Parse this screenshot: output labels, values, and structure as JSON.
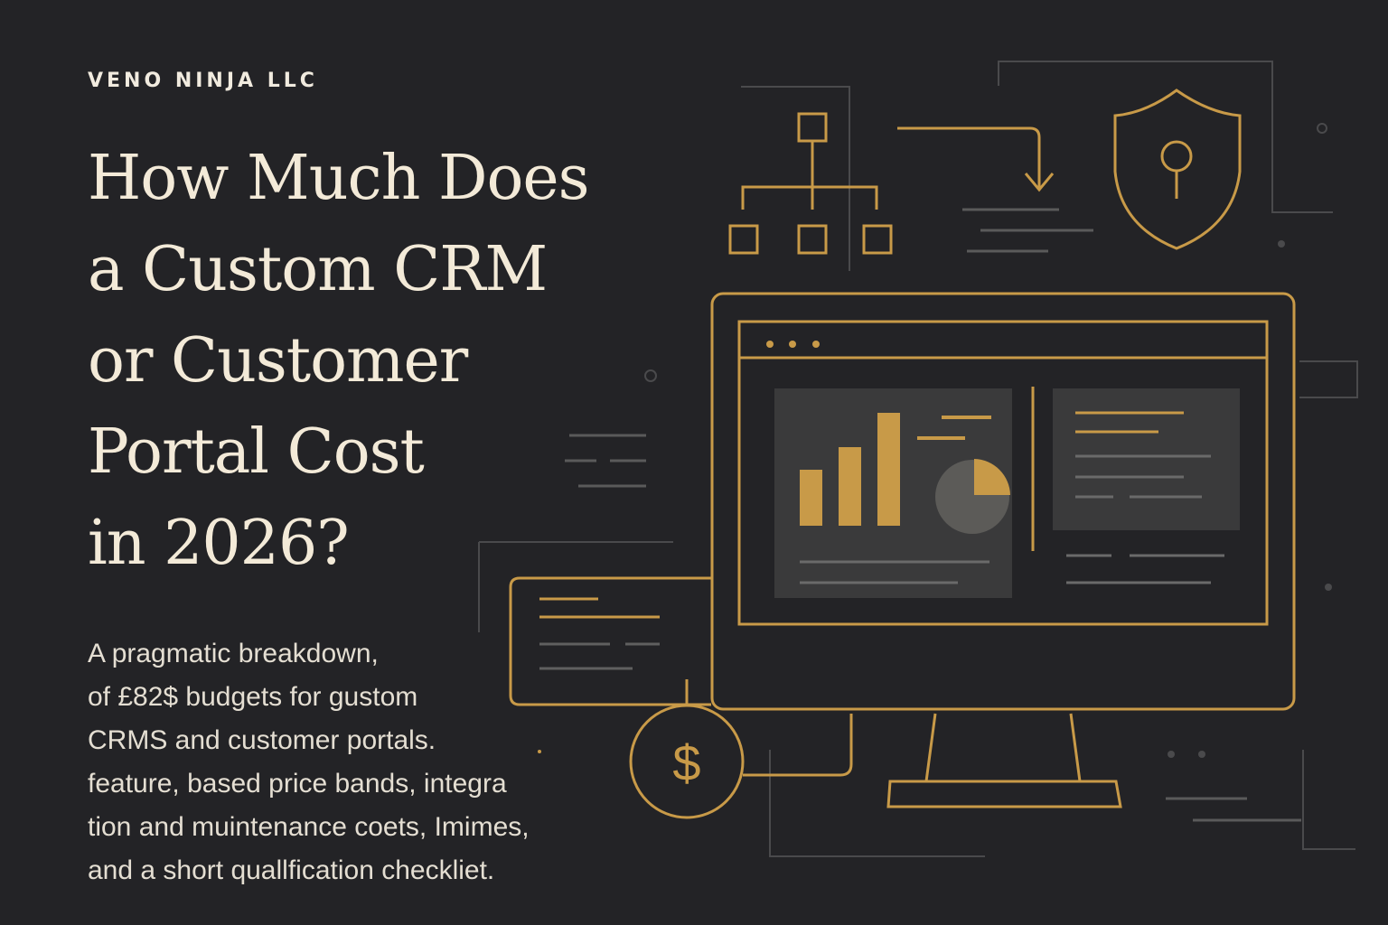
{
  "brand": "VENO NINJA LLC",
  "title": {
    "lines": [
      "How Much Does",
      "a Custom CRM",
      "or Customer",
      "Portal Cost",
      "in 2026?"
    ]
  },
  "description": {
    "lines": [
      "A pragmatic breakdown,",
      "of £82$ budgets for gustom",
      "CRMS and customer portals.",
      "feature, based price bands, integra",
      "tion and muintenance coets, Imimes,",
      "and a short quallfication checkliet."
    ]
  },
  "illustration": {
    "coin_symbol": "$"
  }
}
